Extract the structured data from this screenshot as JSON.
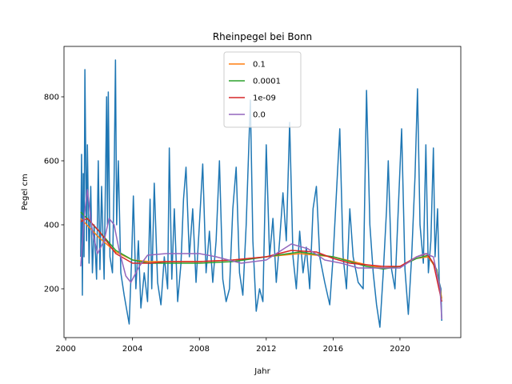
{
  "chart_data": {
    "type": "line",
    "title": "Rheinpegel bei Bonn",
    "x_label": "Jahr",
    "y_label": "Pegel cm",
    "xlim": [
      1999.9,
      2023.64
    ],
    "ylim": [
      47.5,
      957.5
    ],
    "xticks": [
      2000,
      2004,
      2008,
      2012,
      2016,
      2020
    ],
    "yticks": [
      200,
      400,
      600,
      800
    ],
    "legend": "upper center",
    "series": [
      {
        "color": "#1f77b4",
        "x": [
          2000.9,
          2000.95,
          2001.0,
          2001.05,
          2001.1,
          2001.15,
          2001.25,
          2001.3,
          2001.4,
          2001.5,
          2001.6,
          2001.7,
          2001.85,
          2001.95,
          2002.05,
          2002.15,
          2002.3,
          2002.45,
          2002.5,
          2002.55,
          2002.65,
          2002.8,
          2002.9,
          2002.98,
          2003.05,
          2003.15,
          2003.3,
          2003.5,
          2003.7,
          2003.8,
          2003.95,
          2004.05,
          2004.2,
          2004.35,
          2004.5,
          2004.7,
          2004.9,
          2005.05,
          2005.15,
          2005.3,
          2005.5,
          2005.7,
          2005.9,
          2006.1,
          2006.2,
          2006.35,
          2006.5,
          2006.7,
          2006.9,
          2007.05,
          2007.2,
          2007.4,
          2007.6,
          2007.8,
          2008.0,
          2008.2,
          2008.4,
          2008.6,
          2008.8,
          2009.0,
          2009.2,
          2009.4,
          2009.6,
          2009.8,
          2010.0,
          2010.2,
          2010.4,
          2010.6,
          2010.8,
          2011.05,
          2011.2,
          2011.4,
          2011.6,
          2011.8,
          2012.0,
          2012.2,
          2012.4,
          2012.6,
          2012.8,
          2013.0,
          2013.2,
          2013.4,
          2013.6,
          2013.8,
          2014.0,
          2014.2,
          2014.4,
          2014.6,
          2014.8,
          2015.0,
          2015.2,
          2015.5,
          2015.8,
          2016.0,
          2016.2,
          2016.4,
          2016.6,
          2016.8,
          2017.0,
          2017.2,
          2017.5,
          2017.8,
          2018.0,
          2018.2,
          2018.4,
          2018.6,
          2018.8,
          2019.0,
          2019.2,
          2019.3,
          2019.5,
          2019.7,
          2019.9,
          2020.1,
          2020.3,
          2020.5,
          2020.7,
          2020.9,
          2021.05,
          2021.2,
          2021.4,
          2021.55,
          2021.7,
          2021.85,
          2022.0,
          2022.1,
          2022.25,
          2022.35,
          2022.45,
          2022.5
        ],
        "values": [
          300,
          620,
          180,
          560,
          300,
          885,
          350,
          650,
          280,
          520,
          250,
          400,
          230,
          600,
          260,
          520,
          230,
          800,
          400,
          815,
          300,
          250,
          550,
          915,
          400,
          600,
          250,
          180,
          120,
          90,
          300,
          490,
          200,
          350,
          140,
          250,
          160,
          480,
          200,
          530,
          220,
          150,
          300,
          200,
          640,
          230,
          450,
          160,
          280,
          480,
          580,
          300,
          450,
          220,
          400,
          590,
          250,
          380,
          220,
          350,
          600,
          230,
          160,
          200,
          450,
          580,
          250,
          180,
          400,
          790,
          350,
          130,
          200,
          160,
          650,
          300,
          420,
          220,
          350,
          500,
          350,
          720,
          300,
          200,
          380,
          250,
          330,
          200,
          450,
          520,
          300,
          220,
          150,
          300,
          500,
          700,
          300,
          200,
          450,
          300,
          220,
          200,
          820,
          400,
          250,
          150,
          80,
          250,
          450,
          600,
          260,
          200,
          450,
          700,
          260,
          120,
          300,
          550,
          825,
          400,
          280,
          650,
          250,
          350,
          640,
          300,
          450,
          220,
          200,
          100
        ]
      },
      {
        "name": "0.1",
        "color": "#ff7f0e",
        "x": [
          2000.9,
          2002,
          2003,
          2004,
          2005,
          2006,
          2008,
          2010,
          2012,
          2014,
          2016,
          2018,
          2019,
          2020,
          2021,
          2021.7,
          2022.2,
          2022.5
        ],
        "values": [
          420,
          360,
          315,
          290,
          285,
          285,
          285,
          290,
          300,
          310,
          300,
          275,
          265,
          270,
          295,
          300,
          260,
          170
        ]
      },
      {
        "name": "0.0001",
        "color": "#2ca02c",
        "x": [
          2000.9,
          2002,
          2003,
          2004,
          2005,
          2006,
          2008,
          2010,
          2012,
          2014,
          2016,
          2018,
          2019,
          2020,
          2021,
          2021.7,
          2022.2,
          2022.5
        ],
        "values": [
          440,
          380,
          320,
          290,
          280,
          280,
          280,
          285,
          300,
          315,
          300,
          270,
          262,
          270,
          295,
          305,
          260,
          160
        ]
      },
      {
        "name": "1e-09",
        "color": "#d62728",
        "x": [
          2000.9,
          2001.3,
          2002,
          2003,
          2004,
          2005,
          2006,
          2008,
          2010,
          2012,
          2013.5,
          2015,
          2016,
          2017,
          2018,
          2019,
          2020,
          2021,
          2021.6,
          2022,
          2022.5
        ],
        "values": [
          410,
          420,
          380,
          310,
          280,
          280,
          285,
          285,
          290,
          300,
          320,
          315,
          295,
          280,
          275,
          270,
          270,
          300,
          310,
          280,
          160
        ]
      },
      {
        "name": "0.0",
        "color": "#9467bd",
        "x": [
          2000.9,
          2001.1,
          2001.3,
          2001.6,
          2001.9,
          2002.3,
          2002.6,
          2002.9,
          2003.2,
          2003.6,
          2003.9,
          2004.4,
          2004.9,
          2006,
          2008,
          2009,
          2010.5,
          2012,
          2013.5,
          2014.5,
          2015.5,
          2016.5,
          2017.5,
          2019,
          2020,
          2021,
          2021.5,
          2022,
          2022.4,
          2022.5
        ],
        "values": [
          270,
          420,
          510,
          380,
          310,
          350,
          420,
          400,
          320,
          240,
          220,
          270,
          305,
          310,
          310,
          300,
          280,
          290,
          340,
          325,
          290,
          280,
          265,
          265,
          265,
          300,
          310,
          300,
          200,
          105
        ]
      }
    ]
  }
}
